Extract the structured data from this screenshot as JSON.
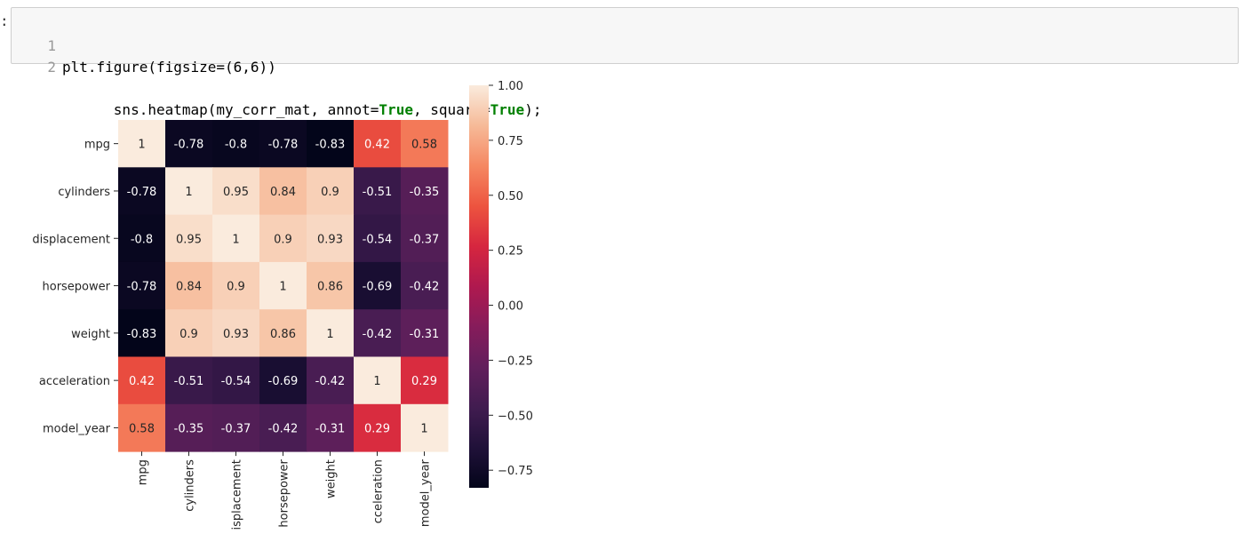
{
  "prompt_marker": ":",
  "code_cell": {
    "lines": [
      {
        "number": "1",
        "text": "plt.figure(figsize=(6,6))",
        "parts": []
      },
      {
        "number": "2",
        "text": "",
        "parts": [
          {
            "t": "sns.heatmap(my_corr_mat, annot=",
            "kw": false
          },
          {
            "t": "True",
            "kw": true
          },
          {
            "t": ", square=",
            "kw": false
          },
          {
            "t": "True",
            "kw": true
          },
          {
            "t": ");",
            "kw": false
          }
        ]
      }
    ]
  },
  "chart_data": {
    "type": "heatmap",
    "title": "",
    "xlabel": "",
    "ylabel": "",
    "rows": [
      "mpg",
      "cylinders",
      "displacement",
      "horsepower",
      "weight",
      "acceleration",
      "model_year"
    ],
    "columns": [
      "mpg",
      "cylinders",
      "displacement",
      "horsepower",
      "weight",
      "acceleration",
      "model_year"
    ],
    "x_tick_labels_visible": [
      "mpg",
      "cylinders",
      "isplacement",
      "horsepower",
      "weight",
      "cceleration",
      "model_year"
    ],
    "values": [
      [
        1,
        -0.78,
        -0.8,
        -0.78,
        -0.83,
        0.42,
        0.58
      ],
      [
        -0.78,
        1,
        0.95,
        0.84,
        0.9,
        -0.51,
        -0.35
      ],
      [
        -0.8,
        0.95,
        1,
        0.9,
        0.93,
        -0.54,
        -0.37
      ],
      [
        -0.78,
        0.84,
        0.9,
        1,
        0.86,
        -0.69,
        -0.42
      ],
      [
        -0.83,
        0.9,
        0.93,
        0.86,
        1,
        -0.42,
        -0.31
      ],
      [
        0.42,
        -0.51,
        -0.54,
        -0.69,
        -0.42,
        1,
        0.29
      ],
      [
        0.58,
        -0.35,
        -0.37,
        -0.42,
        -0.31,
        0.29,
        1
      ]
    ],
    "annotations": [
      [
        "1",
        "-0.78",
        "-0.8",
        "-0.78",
        "-0.83",
        "0.42",
        "0.58"
      ],
      [
        "-0.78",
        "1",
        "0.95",
        "0.84",
        "0.9",
        "-0.51",
        "-0.35"
      ],
      [
        "-0.8",
        "0.95",
        "1",
        "0.9",
        "0.93",
        "-0.54",
        "-0.37"
      ],
      [
        "-0.78",
        "0.84",
        "0.9",
        "1",
        "0.86",
        "-0.69",
        "-0.42"
      ],
      [
        "-0.83",
        "0.9",
        "0.93",
        "0.86",
        "1",
        "-0.42",
        "-0.31"
      ],
      [
        "0.42",
        "-0.51",
        "-0.54",
        "-0.69",
        "-0.42",
        "1",
        "0.29"
      ],
      [
        "0.58",
        "-0.35",
        "-0.37",
        "-0.42",
        "-0.31",
        "0.29",
        "1"
      ]
    ],
    "colormap": "rocket",
    "colorbar": {
      "vmin": -0.83,
      "vmax": 1.0,
      "ticks": [
        1.0,
        0.75,
        0.5,
        0.25,
        0.0,
        -0.25,
        -0.5,
        -0.75
      ],
      "tick_labels": [
        "1.00",
        "0.75",
        "0.50",
        "0.25",
        "0.00",
        "−0.25",
        "−0.50",
        "−0.75"
      ]
    },
    "square": true,
    "grid": false,
    "legend": "colorbar right"
  }
}
